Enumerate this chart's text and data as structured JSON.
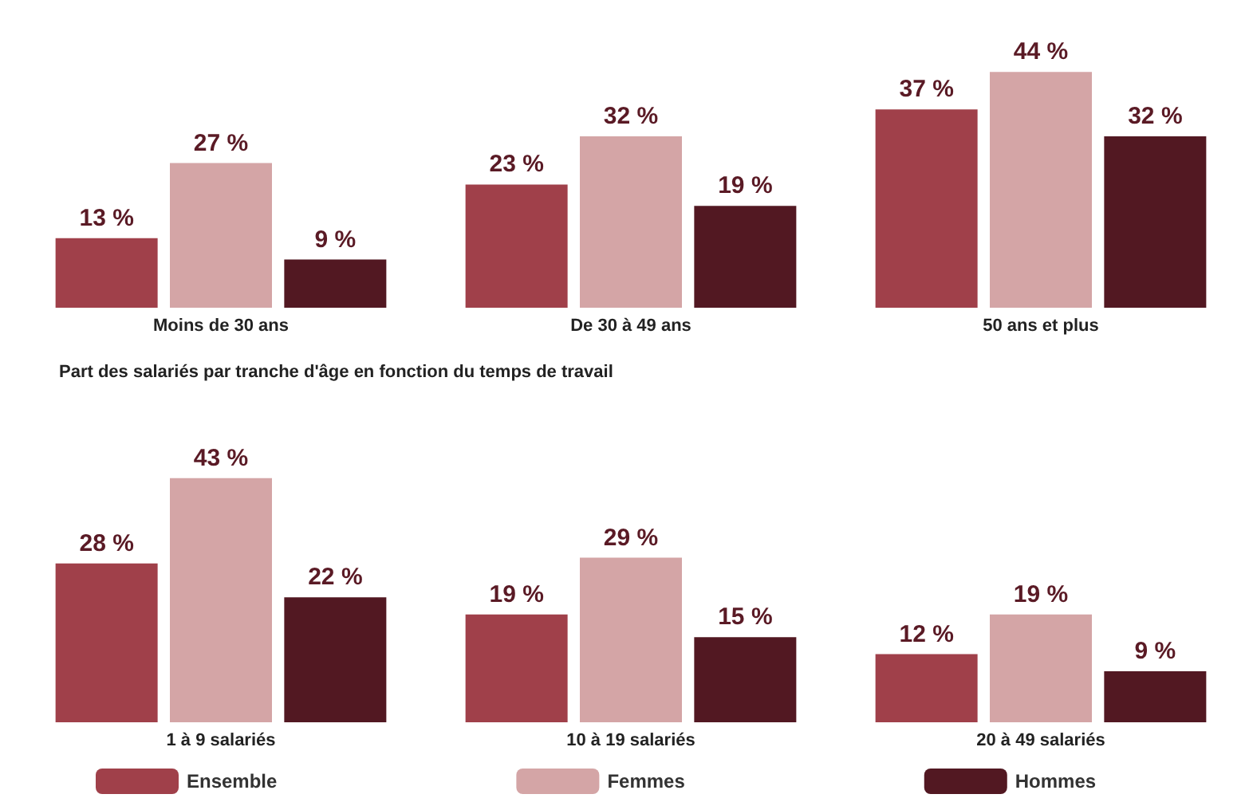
{
  "chart_data": [
    {
      "type": "bar",
      "categories": [
        "Moins de 30 ans",
        "De 30 à 49 ans",
        "50 ans et plus"
      ],
      "series": [
        {
          "color": "#a0404a",
          "values": [
            13,
            23,
            37
          ],
          "value_labels": [
            "13 %",
            "23 %",
            "37 %"
          ]
        },
        {
          "color": "#d4a5a6",
          "values": [
            27,
            32,
            44
          ],
          "value_labels": [
            "27 %",
            "32 %",
            "44 %"
          ]
        },
        {
          "color": "#521822",
          "values": [
            9,
            19,
            32
          ],
          "value_labels": [
            "9 %",
            "19 %",
            "32 %"
          ]
        }
      ],
      "legend": false,
      "grid": false,
      "tick_labels": "x"
    },
    {
      "type": "bar",
      "title": "Part des salariés par tranche d'âge en fonction du temps de travail",
      "categories": [
        "1 à 9 salariés",
        "10 à 19 salariés",
        "20 à 49 salariés"
      ],
      "series": [
        {
          "name": "Ensemble",
          "color": "#a0404a",
          "values": [
            28,
            19,
            12
          ],
          "value_labels": [
            "28 %",
            "19 %",
            "12 %"
          ]
        },
        {
          "name": "Femmes",
          "color": "#d4a5a6",
          "values": [
            43,
            29,
            19
          ],
          "value_labels": [
            "43 %",
            "29 %",
            "19 %"
          ]
        },
        {
          "name": "Hommes",
          "color": "#521822",
          "values": [
            22,
            15,
            9
          ],
          "value_labels": [
            "22 %",
            "15 %",
            "9 %"
          ]
        }
      ],
      "legend": "bottom",
      "grid": false,
      "tick_labels": "x"
    }
  ]
}
